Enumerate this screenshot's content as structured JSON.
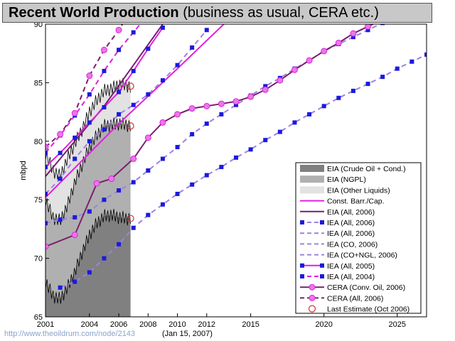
{
  "title": {
    "bold": "Recent World Production",
    "rest": " (business as usual, CERA etc.)"
  },
  "footer": {
    "url": "http://www.theoildrum.com/node/2143",
    "date": "(Jan 15, 2007)"
  },
  "chart_data": {
    "type": "line",
    "ylabel": "mbpd",
    "xlim": [
      2001,
      2027
    ],
    "ylim": [
      65,
      90
    ],
    "x_ticks": [
      2001,
      2004,
      2006,
      2008,
      2010,
      2012,
      2015,
      2020,
      2025
    ],
    "y_ticks": [
      65,
      70,
      75,
      80,
      85,
      90
    ],
    "grid": false,
    "legend_position": "right",
    "colors": {
      "crude": "#808080",
      "ngpl": "#b0b0b0",
      "other": "#e2e2e2",
      "magenta": "#e020e0",
      "dark_purple": "#7a1e6e",
      "blue_marker": "#1a1ae0",
      "lavender": "#a080e0",
      "estimate_red": "#d03030"
    },
    "legend": [
      {
        "label": "EIA (Crude Oil + Cond.)",
        "style": "patch",
        "color": "#808080"
      },
      {
        "label": "EIA (NGPL)",
        "style": "patch",
        "color": "#b0b0b0"
      },
      {
        "label": "EIA (Other Liquids)",
        "style": "patch",
        "color": "#e2e2e2"
      },
      {
        "label": "Const. Barr./Cap.",
        "style": "line",
        "color": "#e020e0",
        "dash": false,
        "marker": "none"
      },
      {
        "label": "EIA (All, 2006)",
        "style": "line",
        "color": "#7a1e6e",
        "dash": false,
        "marker": "none"
      },
      {
        "label": "IEA (All, 2006)",
        "style": "line",
        "color": "#a080e0",
        "dash": true,
        "marker": "square-blue"
      },
      {
        "label": "IEA (All, 2006)",
        "style": "line",
        "color": "#a080e0",
        "dash": true,
        "marker": "none"
      },
      {
        "label": "IEA (CO, 2006)",
        "style": "line",
        "color": "#a080e0",
        "dash": true,
        "marker": "none"
      },
      {
        "label": "IEA (CO+NGL, 2006)",
        "style": "line",
        "color": "#a080e0",
        "dash": true,
        "marker": "none"
      },
      {
        "label": "IEA (All, 2005)",
        "style": "line",
        "color": "#e020e0",
        "dash": false,
        "marker": "square-blue"
      },
      {
        "label": "IEA (All, 2004)",
        "style": "line",
        "color": "#e020e0",
        "dash": true,
        "marker": "square-blue"
      },
      {
        "label": "CERA (Conv. Oil, 2006)",
        "style": "line",
        "color": "#7a1e6e",
        "dash": false,
        "marker": "circle-magenta"
      },
      {
        "label": "CERA (All, 2006)",
        "style": "line",
        "color": "#7a1e6e",
        "dash": true,
        "marker": "circle-magenta"
      },
      {
        "label": "Last Estimate (Oct 2006)",
        "style": "marker",
        "color": "#d03030",
        "marker": "circle-open"
      }
    ],
    "areas": {
      "x": [
        2001,
        2001.5,
        2002,
        2002.5,
        2003,
        2003.5,
        2004,
        2004.5,
        2005,
        2005.5,
        2006,
        2006.5,
        2006.8
      ],
      "crude_top": [
        68.0,
        66.8,
        66.5,
        67.5,
        68.8,
        70.5,
        72.0,
        73.0,
        73.6,
        73.7,
        73.5,
        73.4,
        73.4
      ],
      "ngpl_top": [
        75.0,
        73.5,
        73.2,
        74.5,
        76.5,
        78.0,
        79.5,
        80.5,
        81.3,
        81.4,
        81.5,
        81.4,
        81.3
      ],
      "all_top": [
        79.0,
        77.5,
        77.0,
        78.5,
        79.8,
        81.0,
        82.5,
        83.5,
        84.3,
        84.5,
        84.8,
        84.8,
        84.6
      ]
    },
    "series": [
      {
        "name": "Const. Barr./Cap.",
        "color": "#e020e0",
        "dash": false,
        "marker": "none",
        "x": [
          2001,
          2006,
          2010,
          2014
        ],
        "y": [
          75.2,
          81.5,
          86.2,
          91.0
        ]
      },
      {
        "name": "EIA (All, 2006)",
        "color": "#7a1e6e",
        "dash": false,
        "marker": "none",
        "x": [
          2001,
          2005,
          2007,
          2009
        ],
        "y": [
          77.0,
          83.0,
          86.5,
          90.0
        ]
      },
      {
        "name": "IEA (All, 2006)",
        "color": "#a080e0",
        "dash": true,
        "marker": "square-blue",
        "x": [
          2001,
          2002,
          2003,
          2004,
          2005,
          2006,
          2007,
          2008,
          2009,
          2010,
          2011,
          2012
        ],
        "y": [
          75.5,
          76.8,
          78.5,
          80.0,
          81.0,
          82.3,
          83.1,
          84.0,
          85.2,
          86.5,
          88.0,
          89.5
        ]
      },
      {
        "name": "IEA (CO, 2006)",
        "color": "#a080e0",
        "dash": true,
        "marker": "square-blue",
        "x": [
          2002,
          2003,
          2004,
          2005,
          2006,
          2007,
          2008,
          2009,
          2010,
          2011,
          2012,
          2013,
          2014,
          2015,
          2016,
          2017,
          2018,
          2019,
          2020,
          2021,
          2022,
          2023,
          2024,
          2025,
          2026,
          2027
        ],
        "y": [
          67.5,
          68.0,
          68.8,
          70.0,
          71.2,
          72.6,
          73.7,
          74.6,
          75.5,
          76.3,
          77.1,
          77.8,
          78.6,
          79.3,
          80.1,
          80.8,
          81.6,
          82.3,
          83.0,
          83.7,
          84.3,
          84.9,
          85.5,
          86.2,
          86.8,
          87.4
        ]
      },
      {
        "name": "IEA (CO+NGL, 2006)",
        "color": "#a080e0",
        "dash": true,
        "marker": "square-blue",
        "x": [
          2001,
          2002,
          2003,
          2004,
          2005,
          2006,
          2007,
          2008,
          2009,
          2010,
          2011,
          2012,
          2013,
          2014,
          2015,
          2016,
          2017,
          2018,
          2019,
          2020,
          2021,
          2022,
          2023,
          2024,
          2025,
          2026,
          2027
        ],
        "y": [
          73.0,
          73.3,
          73.5,
          74.0,
          75.0,
          75.8,
          76.5,
          77.5,
          78.5,
          79.5,
          80.6,
          81.5,
          82.3,
          83.1,
          83.9,
          84.7,
          85.4,
          86.2,
          86.9,
          87.7,
          88.3,
          88.9,
          89.5,
          90.1,
          90.7,
          91.2,
          91.8
        ]
      },
      {
        "name": "IEA (All, 2005)",
        "color": "#e020e0",
        "dash": false,
        "marker": "square-blue",
        "x": [
          2001,
          2002,
          2003,
          2004,
          2005,
          2006,
          2007,
          2008,
          2009
        ],
        "y": [
          77.8,
          79.0,
          80.3,
          81.6,
          82.9,
          84.2,
          86.0,
          87.9,
          89.7
        ]
      },
      {
        "name": "IEA (All, 2004)",
        "color": "#e020e0",
        "dash": true,
        "marker": "square-blue",
        "x": [
          2001,
          2002,
          2003,
          2004,
          2005,
          2006,
          2007,
          2008
        ],
        "y": [
          79.0,
          80.5,
          82.2,
          84.0,
          86.0,
          87.8,
          89.3,
          90.8
        ]
      },
      {
        "name": "CERA (Conv. Oil, 2006)",
        "color": "#7a1e6e",
        "dash": false,
        "marker": "circle-magenta",
        "x": [
          2001,
          2003,
          2004.5,
          2005.5,
          2007,
          2008,
          2009,
          2010,
          2011,
          2012,
          2013,
          2014,
          2015,
          2016,
          2017,
          2018,
          2019,
          2020,
          2021,
          2022,
          2023,
          2024,
          2025,
          2026
        ],
        "y": [
          71.0,
          72.0,
          76.4,
          76.8,
          78.5,
          80.3,
          81.6,
          82.3,
          82.8,
          83.0,
          83.2,
          83.4,
          83.8,
          84.4,
          85.2,
          86.1,
          86.9,
          87.7,
          88.4,
          89.2,
          89.8,
          90.4,
          91.0,
          91.6
        ]
      },
      {
        "name": "CERA (All, 2006)",
        "color": "#7a1e6e",
        "dash": true,
        "marker": "circle-magenta",
        "x": [
          2001,
          2002,
          2003,
          2004,
          2005,
          2006,
          2007
        ],
        "y": [
          79.5,
          80.6,
          82.4,
          85.6,
          87.8,
          89.5,
          91.5
        ]
      }
    ],
    "last_estimate": {
      "x": [
        2006.8,
        2006.8,
        2006.8
      ],
      "y": [
        73.4,
        81.3,
        84.7
      ]
    }
  }
}
